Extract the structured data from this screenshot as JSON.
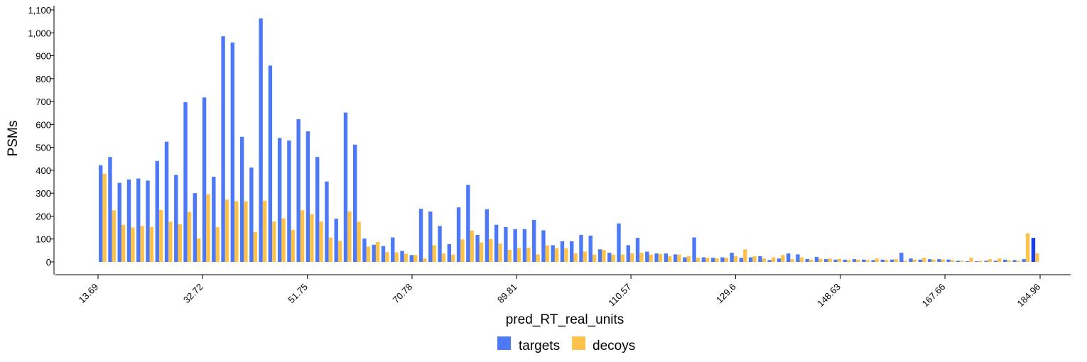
{
  "chart_data": {
    "type": "bar",
    "title": "",
    "xlabel": "pred_RT_real_units",
    "ylabel": "PSMs",
    "ylim": [
      0,
      1100
    ],
    "yticks": [
      0,
      100,
      200,
      300,
      400,
      500,
      600,
      700,
      800,
      900,
      1000,
      1100
    ],
    "ytick_labels": [
      "0",
      "100",
      "200",
      "300",
      "400",
      "500",
      "600",
      "700",
      "800",
      "900",
      "1,000",
      "1,100"
    ],
    "xlim": [
      13.69,
      184.96
    ],
    "xticks": [
      13.69,
      32.72,
      51.75,
      70.78,
      89.81,
      110.57,
      129.6,
      148.63,
      167.66,
      184.96
    ],
    "xtick_labels": [
      "13.69",
      "32.72",
      "51.75",
      "70.78",
      "89.81",
      "110.57",
      "129.6",
      "148.63",
      "167.66",
      "184.96"
    ],
    "bin_count": 100,
    "legend_position": "bottom-center",
    "grid": false,
    "colors": {
      "targets": "#4d79f6",
      "decoys": "#fcc24c",
      "highlight": "#1a3fe8"
    },
    "highlight_bin": 99,
    "series": [
      {
        "name": "targets",
        "values": [
          422,
          458,
          345,
          360,
          364,
          355,
          441,
          525,
          380,
          697,
          300,
          718,
          372,
          985,
          958,
          546,
          412,
          1063,
          857,
          541,
          530,
          623,
          570,
          458,
          351,
          189,
          652,
          512,
          102,
          75,
          69,
          107,
          48,
          30,
          232,
          220,
          157,
          78,
          238,
          336,
          118,
          230,
          162,
          152,
          143,
          143,
          183,
          138,
          73,
          90,
          90,
          118,
          115,
          55,
          40,
          168,
          73,
          105,
          45,
          37,
          37,
          33,
          20,
          107,
          20,
          18,
          20,
          40,
          18,
          20,
          25,
          8,
          15,
          37,
          33,
          13,
          22,
          12,
          10,
          10,
          12,
          10,
          8,
          10,
          10,
          40,
          15,
          10,
          12,
          12,
          10,
          5,
          3,
          3,
          5,
          5,
          10,
          8,
          12,
          105
        ]
      },
      {
        "name": "decoys",
        "values": [
          385,
          225,
          162,
          150,
          157,
          153,
          226,
          176,
          165,
          218,
          103,
          295,
          152,
          272,
          265,
          265,
          130,
          267,
          176,
          190,
          140,
          225,
          208,
          176,
          106,
          92,
          220,
          175,
          67,
          87,
          43,
          42,
          36,
          30,
          15,
          73,
          37,
          32,
          98,
          137,
          85,
          100,
          80,
          53,
          60,
          62,
          33,
          72,
          60,
          60,
          37,
          45,
          32,
          52,
          32,
          32,
          38,
          40,
          32,
          35,
          25,
          32,
          25,
          18,
          18,
          15,
          18,
          25,
          55,
          25,
          15,
          20,
          30,
          12,
          20,
          10,
          13,
          15,
          13,
          8,
          10,
          8,
          15,
          8,
          12,
          5,
          10,
          18,
          10,
          10,
          8,
          5,
          18,
          5,
          12,
          15,
          7,
          5,
          125,
          38
        ]
      }
    ]
  }
}
